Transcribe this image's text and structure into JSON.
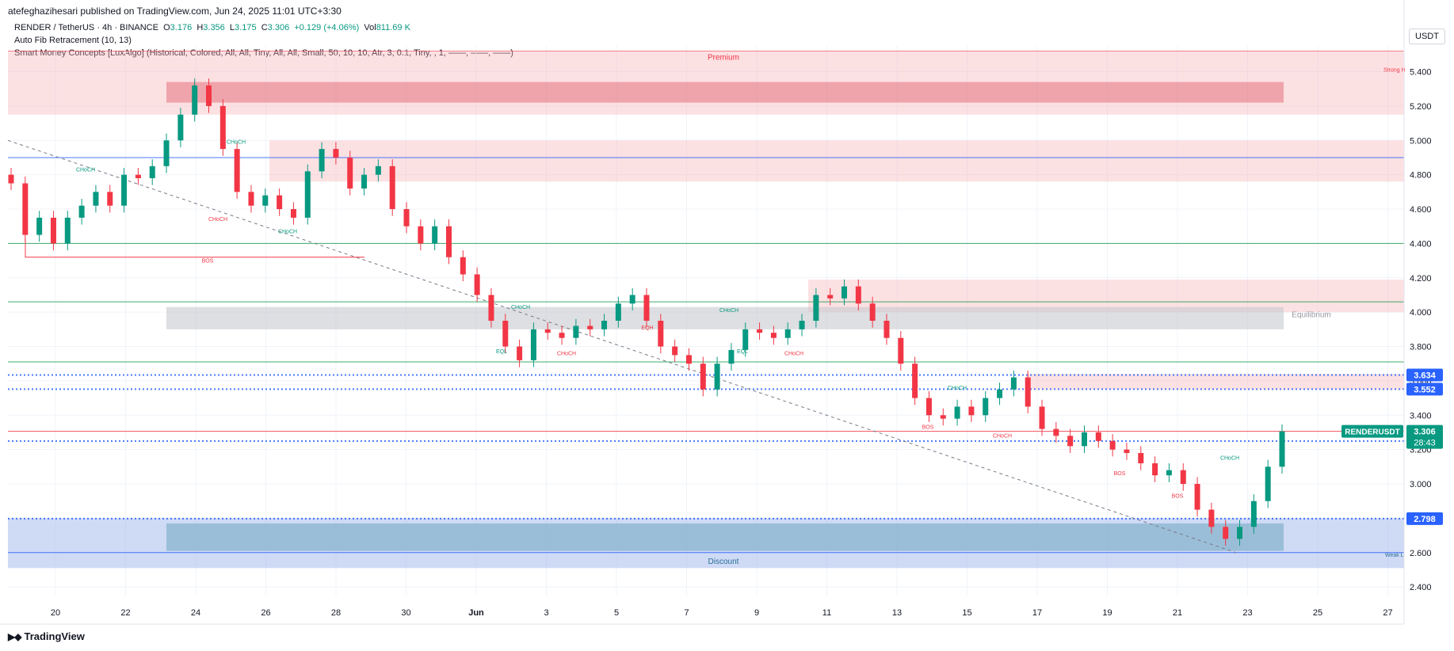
{
  "header": {
    "publisher": "atefeghazihesari published on TradingView.com, Jun 24, 2025 11:01 UTC+3:30",
    "symbol_line": "RENDER / TetherUS · 4h · BINANCE",
    "open_label": "O",
    "open": "3.176",
    "high_label": "H",
    "high": "3.356",
    "low_label": "L",
    "low": "3.175",
    "close_label": "C",
    "close": "3.306",
    "change": "+0.129 (+4.06%)",
    "vol_label": "Vol",
    "vol": "811.69 K",
    "indicator_1": "Auto Fib Retracement (10, 13)",
    "indicator_2": "Smart Money Concepts [LuxAlgo] (Historical, Colored, All, All, Tiny, All, All, Small, 50, 10, 10, Atr, 3, 0.1, Tiny, , 1, ——, ——, ——)"
  },
  "price_axis": {
    "unit": "USDT",
    "ticks": [
      "5.400",
      "5.200",
      "5.000",
      "4.800",
      "4.600",
      "4.400",
      "4.200",
      "4.000",
      "3.800",
      "3.600",
      "3.400",
      "3.200",
      "3.000",
      "2.800",
      "2.600",
      "2.400"
    ]
  },
  "time_axis": {
    "ticks": [
      "20",
      "22",
      "24",
      "26",
      "28",
      "30",
      "Jun",
      "3",
      "5",
      "7",
      "9",
      "11",
      "13",
      "15",
      "17",
      "19",
      "21",
      "23",
      "25",
      "27"
    ]
  },
  "price_tags": {
    "level_1": "3.634",
    "level_2": "3.552",
    "symbol_tag": "RENDERUSDT",
    "last_price": "3.306",
    "countdown": "28:43",
    "level_3": "3.250",
    "level_4": "2.798"
  },
  "zone_labels": {
    "premium": "Premium",
    "equilibrium": "Equilibrium",
    "discount": "Discount",
    "strong_high": "Strong H",
    "weak_low": "Weak L"
  },
  "structure_labels": [
    "CHoCH",
    "CHoCH",
    "CHoCH",
    "CHoCH",
    "BOS",
    "CHoCH",
    "EQH",
    "CHoCH",
    "EQL",
    "CHoCH",
    "EQL",
    "CHoCH",
    "CHoCH",
    "BOS",
    "CHoCH",
    "BOS",
    "BOS",
    "CHoCH"
  ],
  "colors": {
    "up": "#089981",
    "down": "#f23645",
    "premium_zone": "#f7a8ae",
    "discount_zone": "#9fb6ec",
    "equilibrium_zone": "#c7c9ce",
    "fib_blue": "#2962ff",
    "fib_green": "#1e9e52"
  },
  "footer": {
    "brand": "TradingView"
  },
  "chart_data": {
    "type": "candlestick",
    "symbol": "RENDER / TetherUS",
    "interval": "4h",
    "ylim": [
      2.35,
      5.55
    ],
    "x_ticks": [
      "20",
      "22",
      "24",
      "26",
      "28",
      "30",
      "Jun",
      "3",
      "5",
      "7",
      "9",
      "11",
      "13",
      "15",
      "17",
      "19",
      "21",
      "23",
      "25",
      "27"
    ],
    "y_ticks": [
      5.4,
      5.2,
      5.0,
      4.8,
      4.6,
      4.4,
      4.2,
      4.0,
      3.8,
      3.6,
      3.4,
      3.2,
      3.0,
      2.8,
      2.6,
      2.4
    ],
    "closes_path": [
      4.75,
      4.45,
      4.55,
      4.4,
      4.55,
      4.62,
      4.7,
      4.62,
      4.8,
      4.78,
      4.85,
      5.0,
      5.15,
      5.32,
      5.2,
      4.95,
      4.7,
      4.62,
      4.68,
      4.6,
      4.55,
      4.82,
      4.95,
      4.9,
      4.72,
      4.8,
      4.85,
      4.6,
      4.5,
      4.4,
      4.5,
      4.32,
      4.22,
      4.1,
      3.95,
      3.8,
      3.72,
      3.9,
      3.88,
      3.85,
      3.92,
      3.9,
      3.95,
      4.05,
      4.1,
      3.95,
      3.8,
      3.75,
      3.7,
      3.55,
      3.7,
      3.78,
      3.9,
      3.88,
      3.85,
      3.9,
      3.95,
      4.1,
      4.08,
      4.15,
      4.05,
      3.95,
      3.85,
      3.7,
      3.5,
      3.4,
      3.38,
      3.45,
      3.4,
      3.5,
      3.55,
      3.62,
      3.45,
      3.32,
      3.28,
      3.22,
      3.3,
      3.25,
      3.2,
      3.18,
      3.12,
      3.05,
      3.08,
      3.0,
      2.85,
      2.75,
      2.68,
      2.75,
      2.9,
      3.1,
      3.306
    ],
    "horizontal_levels": [
      3.634,
      3.552,
      3.306,
      3.25,
      2.798,
      4.4,
      4.06,
      3.71,
      4.9
    ],
    "zones": [
      {
        "name": "Premium",
        "from": 5.15,
        "to": 5.52
      },
      {
        "name": "",
        "from": 4.76,
        "to": 5.0
      },
      {
        "name": "",
        "from": 4.0,
        "to": 4.19
      },
      {
        "name": "Equilibrium",
        "from": 3.9,
        "to": 4.03
      },
      {
        "name": "",
        "from": 3.55,
        "to": 3.64
      },
      {
        "name": "Discount",
        "from": 2.51,
        "to": 2.8
      }
    ]
  }
}
